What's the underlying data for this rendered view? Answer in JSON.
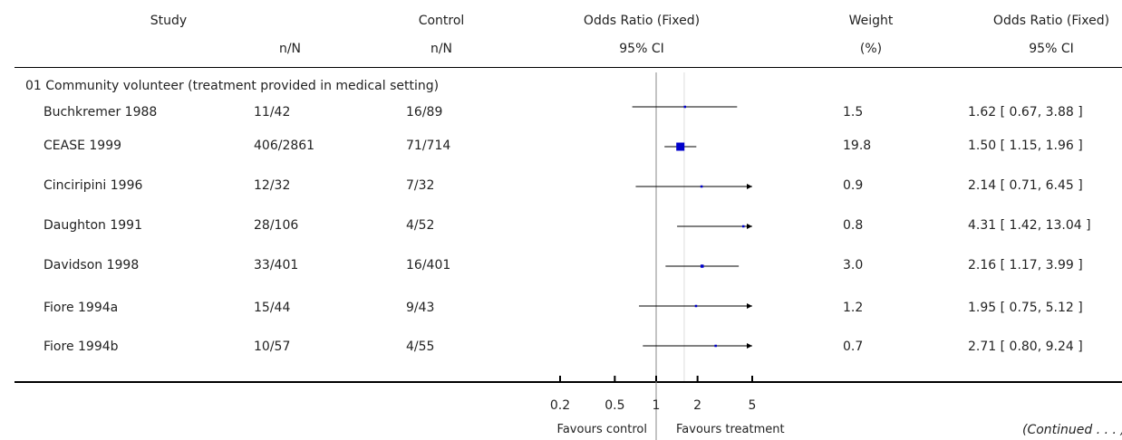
{
  "header": {
    "study": "Study",
    "treatment_sub": "n/N",
    "control": "Control",
    "control_sub": "n/N",
    "or_plot": "Odds Ratio (Fixed)",
    "or_plot_sub": "95% CI",
    "weight": "Weight",
    "weight_sub": "(%)",
    "or_text": "Odds Ratio (Fixed)",
    "or_text_sub": "95% CI"
  },
  "subgroup": "01 Community volunteer (treatment provided in medical setting)",
  "rows": [
    {
      "study": "Buchkremer 1988",
      "treatment": "11/42",
      "control": "16/89",
      "weight": "1.5",
      "ci_text": "1.62 [ 0.67, 3.88 ]"
    },
    {
      "study": "CEASE 1999",
      "treatment": "406/2861",
      "control": "71/714",
      "weight": "19.8",
      "ci_text": "1.50 [ 1.15, 1.96 ]"
    },
    {
      "study": "Cinciripini 1996",
      "treatment": "12/32",
      "control": "7/32",
      "weight": "0.9",
      "ci_text": "2.14 [ 0.71, 6.45 ]"
    },
    {
      "study": "Daughton 1991",
      "treatment": "28/106",
      "control": "4/52",
      "weight": "0.8",
      "ci_text": "4.31 [ 1.42, 13.04 ]"
    },
    {
      "study": "Davidson 1998",
      "treatment": "33/401",
      "control": "16/401",
      "weight": "3.0",
      "ci_text": "2.16 [ 1.17, 3.99 ]"
    },
    {
      "study": "Fiore 1994a",
      "treatment": "15/44",
      "control": "9/43",
      "weight": "1.2",
      "ci_text": "1.95 [ 0.75, 5.12 ]"
    },
    {
      "study": "Fiore 1994b",
      "treatment": "10/57",
      "control": "4/55",
      "weight": "0.7",
      "ci_text": "2.71 [ 0.80, 9.24 ]"
    }
  ],
  "axis": {
    "ticks": [
      0.2,
      0.5,
      1,
      2,
      5
    ],
    "tick_labels": [
      "0.2",
      "0.5",
      "1",
      "2",
      "5"
    ],
    "favours_left": "Favours control",
    "favours_right": "Favours treatment"
  },
  "continued": "(Continued . . . )",
  "colors": {
    "marker": "#0000cc",
    "line": "#000000",
    "reference_line": "#888888"
  },
  "chart_data": {
    "type": "forest",
    "scale": "log",
    "xlim": [
      0.2,
      5
    ],
    "reference_value": 1,
    "pooled_line_value": 1.6,
    "series": [
      {
        "study": "Buchkremer 1988",
        "or": 1.62,
        "lower": 0.67,
        "upper": 3.88,
        "weight": 1.5
      },
      {
        "study": "CEASE 1999",
        "or": 1.5,
        "lower": 1.15,
        "upper": 1.96,
        "weight": 19.8
      },
      {
        "study": "Cinciripini 1996",
        "or": 2.14,
        "lower": 0.71,
        "upper": 6.45,
        "weight": 0.9
      },
      {
        "study": "Daughton 1991",
        "or": 4.31,
        "lower": 1.42,
        "upper": 13.04,
        "weight": 0.8
      },
      {
        "study": "Davidson 1998",
        "or": 2.16,
        "lower": 1.17,
        "upper": 3.99,
        "weight": 3.0
      },
      {
        "study": "Fiore 1994a",
        "or": 1.95,
        "lower": 0.75,
        "upper": 5.12,
        "weight": 1.2
      },
      {
        "study": "Fiore 1994b",
        "or": 2.71,
        "lower": 0.8,
        "upper": 9.24,
        "weight": 0.7
      }
    ]
  }
}
